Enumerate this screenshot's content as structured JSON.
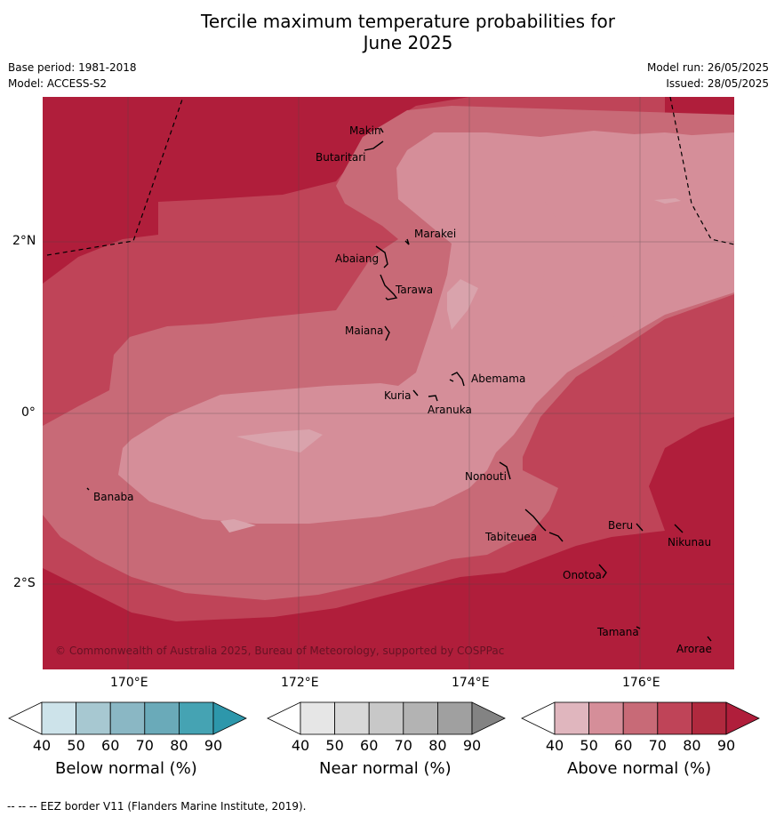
{
  "title_line1": "Tercile maximum temperature probabilities for",
  "title_line2": "June 2025",
  "meta": {
    "base_period": "Base period: 1981-2018",
    "model": "Model: ACCESS-S2",
    "model_run": "Model run: 26/05/2025",
    "issued": "Issued: 28/05/2025"
  },
  "axes": {
    "lat_labels": [
      "2°N",
      "0°",
      "2°S"
    ],
    "lon_labels": [
      "170°E",
      "172°E",
      "174°E",
      "176°E"
    ]
  },
  "places": [
    {
      "name": "Makin"
    },
    {
      "name": "Butaritari"
    },
    {
      "name": "Marakei"
    },
    {
      "name": "Abaiang"
    },
    {
      "name": "Tarawa"
    },
    {
      "name": "Maiana"
    },
    {
      "name": "Abemama"
    },
    {
      "name": "Kuria"
    },
    {
      "name": "Aranuka"
    },
    {
      "name": "Banaba"
    },
    {
      "name": "Nonouti"
    },
    {
      "name": "Tabiteuea"
    },
    {
      "name": "Beru"
    },
    {
      "name": "Nikunau"
    },
    {
      "name": "Onotoa"
    },
    {
      "name": "Tamana"
    },
    {
      "name": "Arorae"
    }
  ],
  "copyright": "© Commonwealth of Australia 2025, Bureau of Meteorology, supported by COSPPac",
  "colorbars": [
    {
      "title": "Below normal (%)",
      "ticks": [
        "40",
        "50",
        "60",
        "70",
        "80",
        "90"
      ],
      "colors": [
        "#ffffff",
        "#cde3ea",
        "#a7c8d1",
        "#8ab7c4",
        "#6aaab9",
        "#45a3b3",
        "#2d97ab"
      ]
    },
    {
      "title": "Near normal (%)",
      "ticks": [
        "40",
        "50",
        "60",
        "70",
        "80",
        "90"
      ],
      "colors": [
        "#ffffff",
        "#e6e6e6",
        "#d8d8d8",
        "#c8c8c8",
        "#b3b3b3",
        "#a0a0a0",
        "#838383"
      ]
    },
    {
      "title": "Above normal (%)",
      "ticks": [
        "40",
        "50",
        "60",
        "70",
        "80",
        "90"
      ],
      "colors": [
        "#ffffff",
        "#e0b6be",
        "#d58e99",
        "#c86a77",
        "#bf4458",
        "#b0293e",
        "#b01e3b"
      ]
    }
  ],
  "footer": "--  --  -- EEZ border V11 (Flanders Marine Institute, 2019)."
}
